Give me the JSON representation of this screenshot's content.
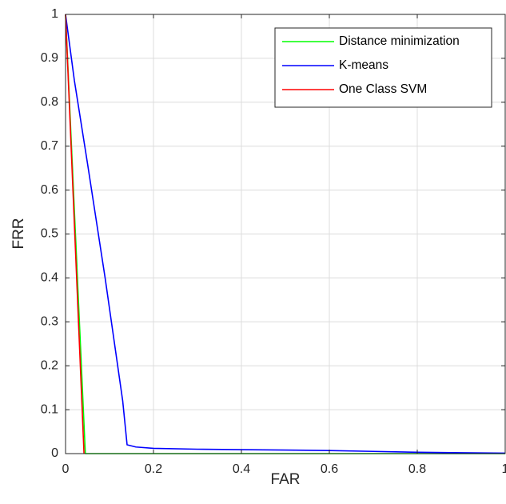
{
  "chart_data": {
    "type": "line",
    "title": "",
    "xlabel": "FAR",
    "ylabel": "FRR",
    "xlim": [
      0,
      1
    ],
    "ylim": [
      0,
      1
    ],
    "xticks": [
      0,
      0.2,
      0.4,
      0.6,
      0.8,
      1
    ],
    "yticks": [
      0,
      0.1,
      0.2,
      0.3,
      0.4,
      0.5,
      0.6,
      0.7,
      0.8,
      0.9,
      1
    ],
    "xtick_labels": [
      "0",
      "0.2",
      "0.4",
      "0.6",
      "0.8",
      "1"
    ],
    "ytick_labels": [
      "0",
      "0.1",
      "0.2",
      "0.3",
      "0.4",
      "0.5",
      "0.6",
      "0.7",
      "0.8",
      "0.9",
      "1"
    ],
    "grid": true,
    "legend": {
      "position": "top-right"
    },
    "series": [
      {
        "name": "Distance minimization",
        "color": "#00ff00",
        "x": [
          0,
          0.045,
          0.1,
          0.3,
          0.6,
          0.9,
          1.0
        ],
        "y": [
          1,
          0,
          0,
          0,
          0,
          0,
          0
        ]
      },
      {
        "name": "K-means",
        "color": "#0000ff",
        "x": [
          0,
          0.02,
          0.05,
          0.09,
          0.13,
          0.14,
          0.16,
          0.2,
          0.3,
          0.4,
          0.5,
          0.6,
          0.7,
          0.8,
          0.9,
          1.0
        ],
        "y": [
          1,
          0.85,
          0.66,
          0.4,
          0.12,
          0.02,
          0.015,
          0.012,
          0.01,
          0.009,
          0.008,
          0.007,
          0.005,
          0.003,
          0.002,
          0.001
        ]
      },
      {
        "name": "One Class SVM",
        "color": "#ff0000",
        "x": [
          0,
          0.042
        ],
        "y": [
          1,
          0
        ]
      }
    ]
  }
}
